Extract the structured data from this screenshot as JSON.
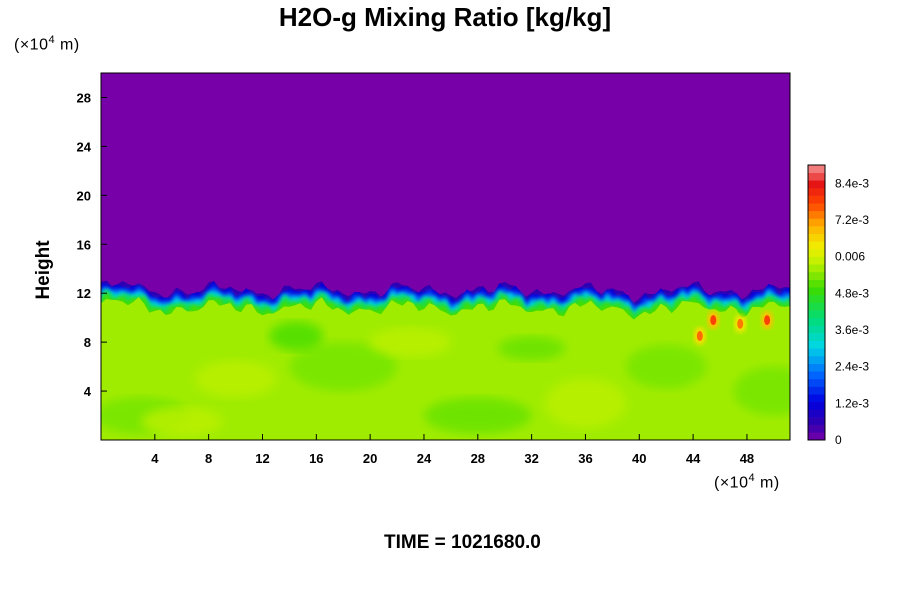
{
  "chart_data": {
    "type": "heatmap",
    "title": "H2O-g Mixing Ratio [kg/kg]",
    "ylabel": "Height",
    "y_unit": {
      "prefix": "(×10",
      "exp": "4",
      "suffix": " m)"
    },
    "x_unit": {
      "prefix": "(×10",
      "exp": "4",
      "suffix": " m)"
    },
    "xlim": [
      0,
      51.2
    ],
    "ylim": [
      0,
      30
    ],
    "x_ticks": [
      4,
      8,
      12,
      16,
      20,
      24,
      28,
      32,
      36,
      40,
      44,
      48
    ],
    "y_ticks": [
      4,
      8,
      12,
      16,
      20,
      24,
      28
    ],
    "x_tick_labels": [
      "4",
      "8",
      "12",
      "16",
      "20",
      "24",
      "28",
      "32",
      "36",
      "40",
      "44",
      "48"
    ],
    "y_tick_labels": [
      "4",
      "8",
      "12",
      "16",
      "20",
      "24",
      "28"
    ],
    "colorbar": {
      "min": 0,
      "max": 0.009,
      "levels": 36,
      "ticks": [
        0,
        0.0012,
        0.0024,
        0.0036,
        0.0048,
        0.006,
        0.0072,
        0.0084
      ],
      "tick_labels": [
        "0",
        "1.2e-3",
        "2.4e-3",
        "3.6e-3",
        "4.8e-3",
        "0.006",
        "7.2e-3",
        "8.4e-3"
      ]
    },
    "field_description": {
      "upper_value": 0,
      "lower_value": 0.0056,
      "interface_height": 11.5,
      "moist_pockets": [
        {
          "x": 44.5,
          "y": 8.5,
          "value": 0.0075
        },
        {
          "x": 45.5,
          "y": 9.8,
          "value": 0.0078
        },
        {
          "x": 47.5,
          "y": 9.5,
          "value": 0.0074
        },
        {
          "x": 49.5,
          "y": 9.8,
          "value": 0.0078
        }
      ]
    }
  },
  "time_label": "TIME = 1021680.0",
  "colors": {
    "top_purple": "#7700a8",
    "base_yellow": "#dfff00"
  }
}
